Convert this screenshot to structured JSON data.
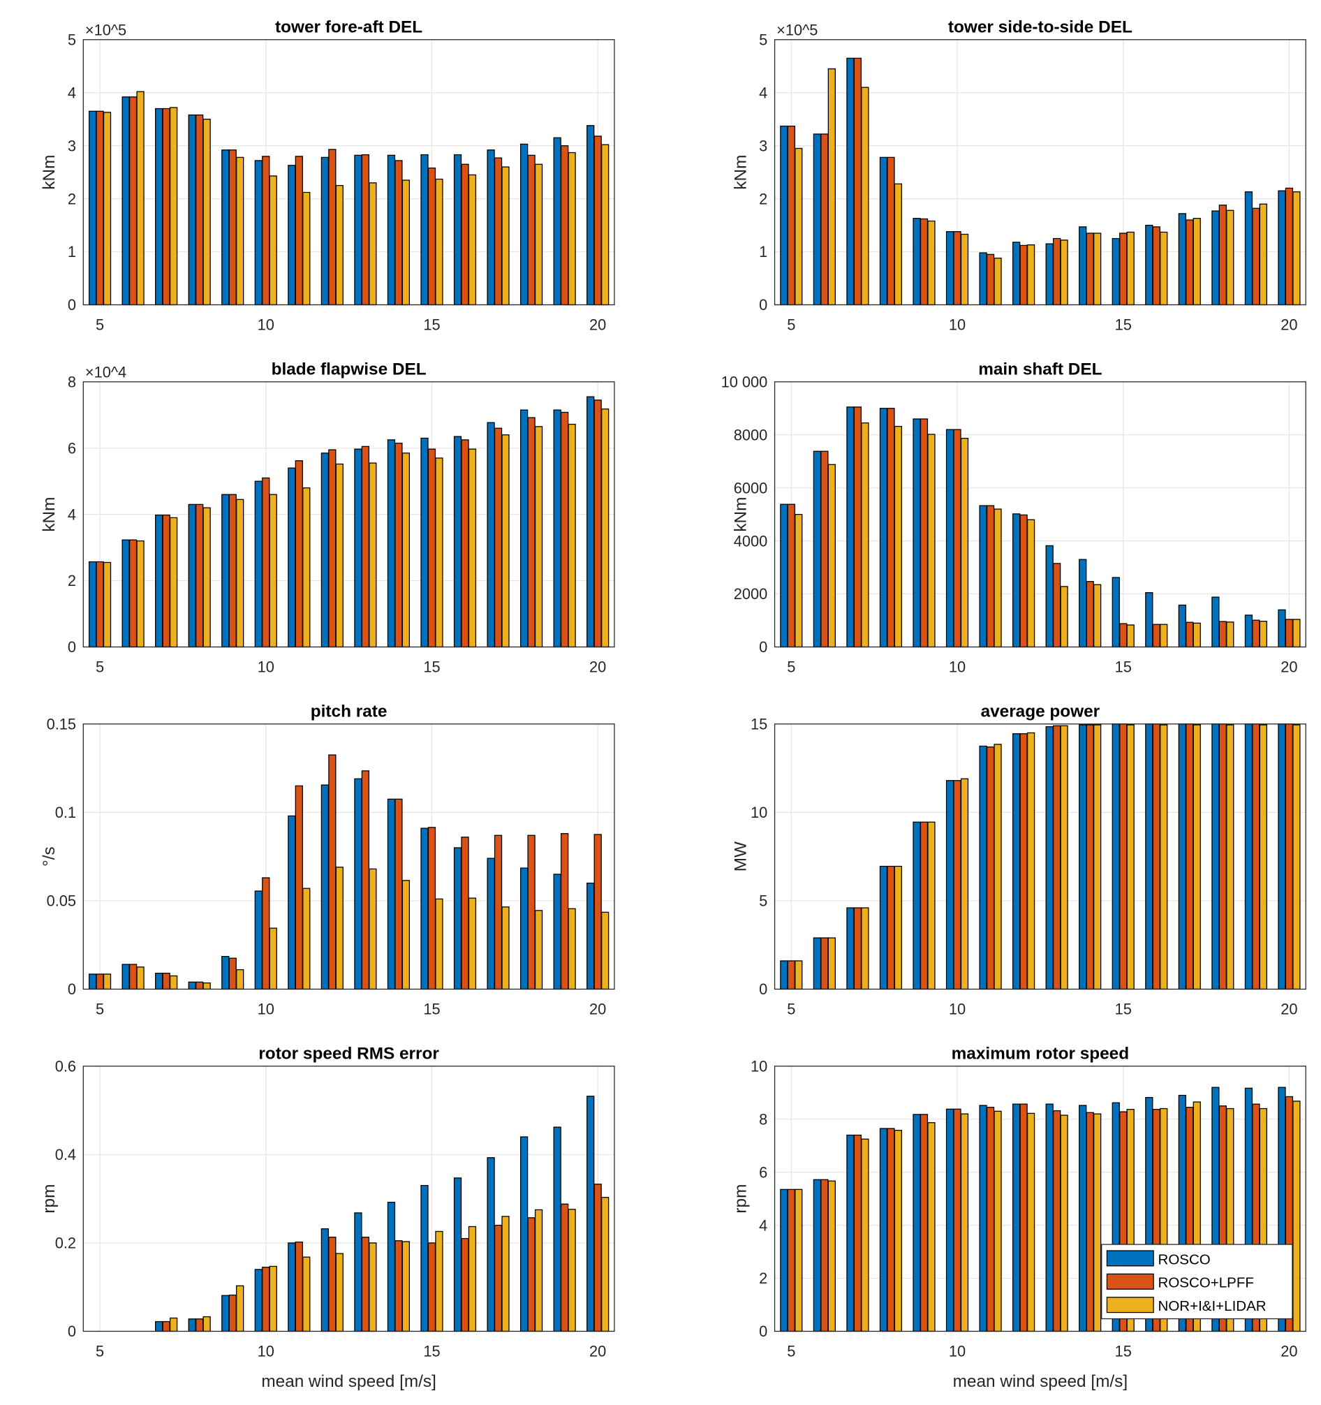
{
  "colors": {
    "ROSCO": "#0072BD",
    "ROSCO+LPFF": "#D95319",
    "NOR+I&I+LIDAR": "#EDB120"
  },
  "legend": {
    "placement": "inside lower-right of maximum rotor speed panel",
    "entries": [
      "ROSCO",
      "ROSCO+LPFF",
      "NOR+I&I+LIDAR"
    ]
  },
  "chart_data": [
    {
      "type": "bar",
      "title": "tower fore-aft DEL",
      "ylabel": "kNm",
      "xlabel": "",
      "exponent": "×10^5",
      "ylim": [
        0,
        5
      ],
      "yticks": [
        0,
        1,
        2,
        3,
        4,
        5
      ],
      "ytick_labels": [
        "0",
        "1",
        "2",
        "3",
        "4",
        "5"
      ],
      "grid": true,
      "categories": [
        5,
        6,
        7,
        8,
        9,
        10,
        11,
        12,
        13,
        14,
        15,
        16,
        17,
        18,
        19,
        20
      ],
      "series": [
        {
          "name": "ROSCO",
          "values": [
            3.65,
            3.92,
            3.7,
            3.58,
            2.92,
            2.72,
            2.63,
            2.78,
            2.82,
            2.82,
            2.83,
            2.83,
            2.92,
            3.03,
            3.15,
            3.38
          ]
        },
        {
          "name": "ROSCO+LPFF",
          "values": [
            3.65,
            3.92,
            3.7,
            3.58,
            2.92,
            2.8,
            2.8,
            2.93,
            2.83,
            2.72,
            2.58,
            2.65,
            2.77,
            2.82,
            3.0,
            3.18
          ]
        },
        {
          "name": "NOR+I&I+LIDAR",
          "values": [
            3.63,
            4.02,
            3.72,
            3.5,
            2.78,
            2.43,
            2.12,
            2.25,
            2.3,
            2.35,
            2.37,
            2.45,
            2.6,
            2.65,
            2.87,
            3.02
          ]
        }
      ]
    },
    {
      "type": "bar",
      "title": "tower side-to-side DEL",
      "ylabel": "kNm",
      "xlabel": "",
      "exponent": "×10^5",
      "ylim": [
        0,
        5
      ],
      "yticks": [
        0,
        1,
        2,
        3,
        4,
        5
      ],
      "ytick_labels": [
        "0",
        "1",
        "2",
        "3",
        "4",
        "5"
      ],
      "grid": true,
      "categories": [
        5,
        6,
        7,
        8,
        9,
        10,
        11,
        12,
        13,
        14,
        15,
        16,
        17,
        18,
        19,
        20
      ],
      "series": [
        {
          "name": "ROSCO",
          "values": [
            3.37,
            3.22,
            4.65,
            2.78,
            1.63,
            1.38,
            0.98,
            1.18,
            1.15,
            1.47,
            1.25,
            1.5,
            1.72,
            1.77,
            2.13,
            2.15
          ]
        },
        {
          "name": "ROSCO+LPFF",
          "values": [
            3.37,
            3.22,
            4.65,
            2.78,
            1.62,
            1.38,
            0.95,
            1.12,
            1.25,
            1.35,
            1.35,
            1.47,
            1.6,
            1.88,
            1.82,
            2.2
          ]
        },
        {
          "name": "NOR+I&I+LIDAR",
          "values": [
            2.95,
            4.45,
            4.1,
            2.28,
            1.58,
            1.33,
            0.88,
            1.13,
            1.22,
            1.35,
            1.37,
            1.37,
            1.63,
            1.78,
            1.9,
            2.13
          ]
        }
      ]
    },
    {
      "type": "bar",
      "title": "blade flapwise DEL",
      "ylabel": "kNm",
      "xlabel": "",
      "exponent": "×10^4",
      "ylim": [
        0,
        8
      ],
      "yticks": [
        0,
        2,
        4,
        6,
        8
      ],
      "ytick_labels": [
        "0",
        "2",
        "4",
        "6",
        "8"
      ],
      "grid": true,
      "categories": [
        5,
        6,
        7,
        8,
        9,
        10,
        11,
        12,
        13,
        14,
        15,
        16,
        17,
        18,
        19,
        20
      ],
      "series": [
        {
          "name": "ROSCO",
          "values": [
            2.57,
            3.23,
            3.98,
            4.3,
            4.6,
            5.0,
            5.4,
            5.85,
            5.97,
            6.25,
            6.3,
            6.35,
            6.77,
            7.15,
            7.15,
            7.55
          ]
        },
        {
          "name": "ROSCO+LPFF",
          "values": [
            2.57,
            3.23,
            3.98,
            4.3,
            4.6,
            5.1,
            5.62,
            5.95,
            6.05,
            6.15,
            5.97,
            6.25,
            6.6,
            6.92,
            7.08,
            7.45
          ]
        },
        {
          "name": "NOR+I&I+LIDAR",
          "values": [
            2.55,
            3.2,
            3.9,
            4.2,
            4.45,
            4.6,
            4.8,
            5.52,
            5.55,
            5.85,
            5.7,
            5.97,
            6.4,
            6.65,
            6.72,
            7.18
          ]
        }
      ]
    },
    {
      "type": "bar",
      "title": "main shaft DEL",
      "ylabel": "kNm",
      "xlabel": "",
      "exponent": "",
      "ylim": [
        0,
        10000
      ],
      "yticks": [
        0,
        2000,
        4000,
        6000,
        8000,
        10000
      ],
      "ytick_labels": [
        "0",
        "2000",
        "4000",
        "6000",
        "8000",
        "10 000"
      ],
      "grid": true,
      "categories": [
        5,
        6,
        7,
        8,
        9,
        10,
        11,
        12,
        13,
        14,
        15,
        16,
        17,
        18,
        19,
        20
      ],
      "series": [
        {
          "name": "ROSCO",
          "values": [
            5380,
            7380,
            9050,
            9000,
            8600,
            8200,
            5330,
            5020,
            3820,
            3300,
            2620,
            2050,
            1580,
            1880,
            1200,
            1400
          ]
        },
        {
          "name": "ROSCO+LPFF",
          "values": [
            5380,
            7380,
            9050,
            9000,
            8600,
            8200,
            5330,
            4980,
            3150,
            2470,
            880,
            850,
            930,
            960,
            1010,
            1040
          ]
        },
        {
          "name": "NOR+I&I+LIDAR",
          "values": [
            5000,
            6880,
            8450,
            8320,
            8020,
            7870,
            5200,
            4800,
            2280,
            2350,
            830,
            850,
            900,
            940,
            970,
            1040
          ]
        }
      ]
    },
    {
      "type": "bar",
      "title": "pitch rate",
      "ylabel": "°/s",
      "xlabel": "",
      "exponent": "",
      "ylim": [
        0,
        0.15
      ],
      "yticks": [
        0,
        0.05,
        0.1,
        0.15
      ],
      "ytick_labels": [
        "0",
        "0.05",
        "0.1",
        "0.15"
      ],
      "grid": true,
      "categories": [
        5,
        6,
        7,
        8,
        9,
        10,
        11,
        12,
        13,
        14,
        15,
        16,
        17,
        18,
        19,
        20
      ],
      "series": [
        {
          "name": "ROSCO",
          "values": [
            0.0085,
            0.014,
            0.009,
            0.004,
            0.0185,
            0.0555,
            0.098,
            0.1155,
            0.119,
            0.1075,
            0.091,
            0.08,
            0.074,
            0.0685,
            0.065,
            0.06
          ]
        },
        {
          "name": "ROSCO+LPFF",
          "values": [
            0.0085,
            0.014,
            0.009,
            0.004,
            0.0175,
            0.063,
            0.115,
            0.1325,
            0.1235,
            0.1075,
            0.0915,
            0.086,
            0.087,
            0.087,
            0.088,
            0.0875
          ]
        },
        {
          "name": "NOR+I&I+LIDAR",
          "values": [
            0.0085,
            0.0125,
            0.0075,
            0.0035,
            0.011,
            0.0345,
            0.057,
            0.069,
            0.068,
            0.0615,
            0.051,
            0.0515,
            0.0465,
            0.0445,
            0.0455,
            0.0435
          ]
        }
      ]
    },
    {
      "type": "bar",
      "title": "average power",
      "ylabel": "MW",
      "xlabel": "",
      "exponent": "",
      "ylim": [
        0,
        15
      ],
      "yticks": [
        0,
        5,
        10,
        15
      ],
      "ytick_labels": [
        "0",
        "5",
        "10",
        "15"
      ],
      "grid": true,
      "categories": [
        5,
        6,
        7,
        8,
        9,
        10,
        11,
        12,
        13,
        14,
        15,
        16,
        17,
        18,
        19,
        20
      ],
      "series": [
        {
          "name": "ROSCO",
          "values": [
            1.6,
            2.9,
            4.6,
            6.95,
            9.45,
            11.8,
            13.75,
            14.45,
            14.85,
            14.95,
            15,
            15,
            15,
            15,
            15,
            15
          ]
        },
        {
          "name": "ROSCO+LPFF",
          "values": [
            1.6,
            2.9,
            4.6,
            6.95,
            9.45,
            11.8,
            13.7,
            14.45,
            14.9,
            14.95,
            15,
            15,
            15,
            15,
            15,
            15
          ]
        },
        {
          "name": "NOR+I&I+LIDAR",
          "values": [
            1.6,
            2.9,
            4.6,
            6.95,
            9.45,
            11.9,
            13.85,
            14.5,
            14.9,
            14.95,
            14.95,
            14.95,
            14.95,
            14.95,
            14.95,
            14.95
          ]
        }
      ]
    },
    {
      "type": "bar",
      "title": "rotor speed RMS error",
      "ylabel": "rpm",
      "xlabel": "mean wind speed [m/s]",
      "exponent": "",
      "ylim": [
        0,
        0.6
      ],
      "yticks": [
        0,
        0.2,
        0.4,
        0.6
      ],
      "ytick_labels": [
        "0",
        "0.2",
        "0.4",
        "0.6"
      ],
      "grid": true,
      "categories": [
        5,
        6,
        7,
        8,
        9,
        10,
        11,
        12,
        13,
        14,
        15,
        16,
        17,
        18,
        19,
        20
      ],
      "series": [
        {
          "name": "ROSCO",
          "values": [
            0,
            0,
            0.022,
            0.028,
            0.081,
            0.14,
            0.2,
            0.232,
            0.268,
            0.292,
            0.33,
            0.347,
            0.393,
            0.44,
            0.462,
            0.532
          ]
        },
        {
          "name": "ROSCO+LPFF",
          "values": [
            0,
            0,
            0.022,
            0.028,
            0.082,
            0.145,
            0.202,
            0.213,
            0.213,
            0.205,
            0.2,
            0.21,
            0.24,
            0.257,
            0.288,
            0.333
          ]
        },
        {
          "name": "NOR+I&I+LIDAR",
          "values": [
            0,
            0,
            0.03,
            0.033,
            0.103,
            0.147,
            0.168,
            0.176,
            0.2,
            0.203,
            0.226,
            0.237,
            0.26,
            0.275,
            0.276,
            0.303
          ]
        }
      ]
    },
    {
      "type": "bar",
      "title": "maximum rotor speed",
      "ylabel": "rpm",
      "xlabel": "mean wind speed [m/s]",
      "exponent": "",
      "ylim": [
        0,
        10
      ],
      "yticks": [
        0,
        2,
        4,
        6,
        8,
        10
      ],
      "ytick_labels": [
        "0",
        "2",
        "4",
        "6",
        "8",
        "10"
      ],
      "grid": true,
      "categories": [
        5,
        6,
        7,
        8,
        9,
        10,
        11,
        12,
        13,
        14,
        15,
        16,
        17,
        18,
        19,
        20
      ],
      "series": [
        {
          "name": "ROSCO",
          "values": [
            5.35,
            5.72,
            7.4,
            7.65,
            8.18,
            8.38,
            8.52,
            8.57,
            8.57,
            8.52,
            8.62,
            8.82,
            8.9,
            9.2,
            9.17,
            9.2
          ]
        },
        {
          "name": "ROSCO+LPFF",
          "values": [
            5.35,
            5.72,
            7.4,
            7.65,
            8.18,
            8.38,
            8.45,
            8.57,
            8.32,
            8.25,
            8.28,
            8.37,
            8.45,
            8.5,
            8.57,
            8.85
          ]
        },
        {
          "name": "NOR+I&I+LIDAR",
          "values": [
            5.35,
            5.67,
            7.25,
            7.58,
            7.87,
            8.2,
            8.3,
            8.22,
            8.15,
            8.2,
            8.37,
            8.4,
            8.65,
            8.4,
            8.4,
            8.68
          ]
        }
      ]
    }
  ],
  "xaxis": {
    "xlim": [
      4.5,
      20.5
    ],
    "ticks": [
      5,
      10,
      15,
      20
    ],
    "tick_labels": [
      "5",
      "10",
      "15",
      "20"
    ]
  }
}
